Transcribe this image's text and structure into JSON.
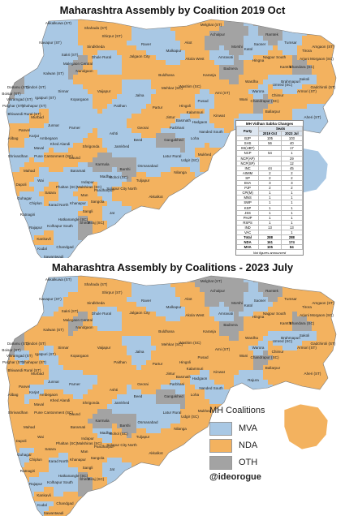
{
  "colors": {
    "MVA": "#a9c8e4",
    "NDA": "#f3b25f",
    "OTH": "#a3a3a3"
  },
  "maps": [
    {
      "title": "Maharashtra Assembly by Coalition 2019 Oct",
      "seats": {
        "Akkalkuwa (ST)": "MVA",
        "Shahada (ST)": "NDA",
        "Shirpur (ST)": "NDA",
        "Navapur (ST)": "MVA",
        "Sindkheda": "NDA",
        "Sakri (ST)": "MVA",
        "Dhule Rural": "MVA",
        "Jalgaon City": "NDA",
        "Raver": "MVA",
        "Malkapur": "MVA",
        "Akot": "NDA",
        "Achalpur": "OTH",
        "Melghat (ST)": "NDA",
        "Ramtek": "OTH",
        "Tumsar": "MVA",
        "Tirora": "NDA",
        "Amgaon (ST)": "NDA",
        "Arjuni Morgaon (SC)": "NDA",
        "Kalwan (ST)": "MVA",
        "Nandgaon": "NDA",
        "Malegaon Central": "OTH",
        "Dindori (ST)": "MVA",
        "Vaijapur": "NDA",
        "Jalna": "MVA",
        "Buldhana": "NDA",
        "Akola West": "NDA",
        "Amravati": "MVA",
        "Hingna": "NDA",
        "Nagpur South": "NDA",
        "Kamthi": "NDA",
        "Bhandara (SC)": "OTH",
        "Sakoli": "MVA",
        "Armori (ST)": "NDA",
        "Dahanu (ST)": "OTH",
        "Vikramgad (ST)": "MVA",
        "Palghar (ST)": "MVA",
        "Boisar (ST)": "OTH",
        "Bhiwandi Rural (ST)": "MVA",
        "Murbad": "NDA",
        "Shahapur (ST)": "MVA",
        "Igatpuri (ST)": "MVA",
        "Sinnar": "MVA",
        "Kopargaon": "MVA",
        "Paithan": "MVA",
        "Partur": "NDA",
        "Jintur": "NDA",
        "Washim (SC)": "NDA",
        "Pusad": "MVA",
        "Wardha": "NDA",
        "Chimur": "NDA",
        "Gadchiroli (ST)": "NDA",
        "Aheri (ST)": "MVA",
        "Brahmapuri": "MVA",
        "Ballarpur": "NDA",
        "Rajura": "MVA",
        "Wani": "NDA",
        "Arni (ST)": "NDA",
        "Kinwat": "NDA",
        "Hadgaon": "MVA",
        "Nanded South": "MVA",
        "Loha": "MVA",
        "Mukhed": "NDA",
        "Udgir (SC)": "MVA",
        "Latur Rural": "MVA",
        "Nilanga": "NDA",
        "Osmanabad": "MVA",
        "Tuljapur": "NDA",
        "Solapur City North": "NDA",
        "Akkalkot": "NDA",
        "Pandharpur": "MVA",
        "Madha": "MVA",
        "Karmala": "OTH",
        "Barshi": "OTH",
        "Jamkhed": "MVA",
        "Beed": "MVA",
        "Georai": "NDA",
        "Ashti": "MVA",
        "Shrigonda": "NDA",
        "Parner": "MVA",
        "Junnar": "MVA",
        "Ambegaon": "MVA",
        "Khed Alandi": "MVA",
        "Maval": "MVA",
        "Pune Cantonment (SC)": "NDA",
        "Baramati": "MVA",
        "Indapur": "MVA",
        "Daund": "NDA",
        "Phaltan (SC)": "MVA",
        "Satara": "NDA",
        "Karad North": "MVA",
        "Wai": "MVA",
        "Mahad": "NDA",
        "Shrivardhan": "MVA",
        "Alibag": "NDA",
        "Panvel": "NDA",
        "Karjat": "MVA",
        "Dapoli": "NDA",
        "Guhagar": "MVA",
        "Chiplun": "MVA",
        "Ratnagiri": "MVA",
        "Rajapur": "MVA",
        "Kankavli": "NDA",
        "Kudal": "MVA",
        "Sawantwadi": "MVA",
        "Chandgad": "MVA",
        "Kolhapur South": "MVA",
        "Hatkanangle (SC)": "MVA",
        "Shirol": "OTH",
        "Sangli": "NDA",
        "Jat": "MVA",
        "Miraj (SC)": "NDA",
        "Khanapur": "MVA",
        "Man": "NDA",
        "Sangola": "NDA",
        "Mohol (SC)": "MVA",
        "Malshiras (SC)": "NDA",
        "Gangakhed": "OTH",
        "Parbhani": "MVA",
        "Kalamnuri": "NDA",
        "Hingoli": "NDA",
        "Basmath": "MVA",
        "Mehkar (SC)": "NDA",
        "Karanja": "NDA",
        "Badnera": "OTH",
        "Morshi": "OTH",
        "Katol": "MVA",
        "Saoner": "MVA",
        "Umred (SC)": "MVA",
        "Chandrapur (SC)": "OTH",
        "Warora": "MVA"
      },
      "table": {
        "title": "MH Vidhan Sabha Changes",
        "headers": [
          "Party",
          "2019 Oct",
          "2023 Jul"
        ],
        "group_label": "Seats",
        "rows": [
          [
            "BJP",
            "105",
            "103"
          ],
          [
            "SHS",
            "56",
            "40"
          ],
          [
            "SS(UBT)",
            "",
            "17"
          ],
          [
            "NCP",
            "54",
            "1"
          ],
          [
            "NCP(AP)",
            "",
            "29"
          ],
          [
            "NCP(SP)",
            "",
            "12"
          ],
          [
            "INC",
            "44",
            "45"
          ],
          [
            "AIMIM",
            "2",
            "2"
          ],
          [
            "SP",
            "2",
            "2"
          ],
          [
            "BVA",
            "3",
            "3"
          ],
          [
            "PJP",
            "2",
            "2"
          ],
          [
            "CPI(M)",
            "1",
            "1"
          ],
          [
            "MNS",
            "1",
            "1"
          ],
          [
            "SWP",
            "1",
            "1"
          ],
          [
            "KSP",
            "1",
            "1"
          ],
          [
            "JSS",
            "1",
            "1"
          ],
          [
            "PHJP",
            "1",
            "1"
          ],
          [
            "RSPS",
            "1",
            "1"
          ],
          [
            "IND",
            "13",
            "13"
          ],
          [
            "VAC",
            "",
            "1"
          ]
        ],
        "totals": [
          [
            "Total",
            "288",
            "288"
          ],
          [
            "NDA",
            "161",
            "174"
          ],
          [
            "MVA",
            "105",
            "84"
          ]
        ],
        "note": "Not figures announced"
      }
    },
    {
      "title": "Maharashtra Assembly by Coalitions - 2023 July",
      "seats": {
        "Akkalkuwa (ST)": "MVA",
        "Shahada (ST)": "NDA",
        "Shirpur (ST)": "NDA",
        "Navapur (ST)": "MVA",
        "Sindkheda": "NDA",
        "Sakri (ST)": "NDA",
        "Dhule Rural": "MVA",
        "Jalgaon City": "NDA",
        "Raver": "MVA",
        "Malkapur": "MVA",
        "Akot": "NDA",
        "Achalpur": "OTH",
        "Melghat (ST)": "OTH",
        "Ramtek": "OTH",
        "Tumsar": "NDA",
        "Tirora": "NDA",
        "Amgaon (ST)": "NDA",
        "Arjuni Morgaon (SC)": "NDA",
        "Kalwan (ST)": "NDA",
        "Nandgaon": "NDA",
        "Malegaon Central": "OTH",
        "Dindori (ST)": "NDA",
        "Vaijapur": "NDA",
        "Jalna": "MVA",
        "Buldhana": "NDA",
        "Akola West": "NDA",
        "Amravati": "MVA",
        "Hingna": "NDA",
        "Nagpur South": "NDA",
        "Kamthi": "NDA",
        "Bhandara (SC)": "OTH",
        "Sakoli": "MVA",
        "Armori (ST)": "NDA",
        "Dahanu (ST)": "OTH",
        "Vikramgad (ST)": "MVA",
        "Palghar (ST)": "NDA",
        "Boisar (ST)": "OTH",
        "Bhiwandi Rural (ST)": "NDA",
        "Murbad": "NDA",
        "Shahapur (ST)": "NDA",
        "Igatpuri (ST)": "MVA",
        "Sinnar": "NDA",
        "Kopargaon": "NDA",
        "Paithan": "NDA",
        "Partur": "NDA",
        "Jintur": "NDA",
        "Washim (SC)": "NDA",
        "Pusad": "NDA",
        "Wardha": "NDA",
        "Chimur": "NDA",
        "Gadchiroli (ST)": "NDA",
        "Aheri (ST)": "NDA",
        "Brahmapuri": "MVA",
        "Ballarpur": "NDA",
        "Rajura": "MVA",
        "Wani": "NDA",
        "Arni (ST)": "NDA",
        "Kinwat": "NDA",
        "Hadgaon": "MVA",
        "Nanded South": "MVA",
        "Loha": "NDA",
        "Mukhed": "NDA",
        "Udgir (SC)": "NDA",
        "Latur Rural": "MVA",
        "Nilanga": "NDA",
        "Osmanabad": "MVA",
        "Tuljapur": "NDA",
        "Solapur City North": "NDA",
        "Akkalkot": "NDA",
        "Pandharpur": "NDA",
        "Madha": "MVA",
        "Karmala": "OTH",
        "Barshi": "OTH",
        "Jamkhed": "MVA",
        "Beed": "MVA",
        "Georai": "NDA",
        "Ashti": "NDA",
        "Shrigonda": "NDA",
        "Parner": "MVA",
        "Junnar": "MVA",
        "Ambegaon": "NDA",
        "Khed Alandi": "NDA",
        "Maval": "NDA",
        "Pune Cantonment (SC)": "NDA",
        "Baramati": "NDA",
        "Indapur": "NDA",
        "Daund": "NDA",
        "Phaltan (SC)": "NDA",
        "Satara": "NDA",
        "Karad North": "MVA",
        "Wai": "NDA",
        "Mahad": "NDA",
        "Shrivardhan": "NDA",
        "Alibag": "NDA",
        "Panvel": "NDA",
        "Karjat": "MVA",
        "Dapoli": "NDA",
        "Guhagar": "MVA",
        "Chiplun": "NDA",
        "Ratnagiri": "NDA",
        "Rajapur": "MVA",
        "Kankavli": "NDA",
        "Kudal": "MVA",
        "Sawantwadi": "NDA",
        "Chandgad": "NDA",
        "Kolhapur South": "MVA",
        "Hatkanangle (SC)": "MVA",
        "Shirol": "OTH",
        "Sangli": "NDA",
        "Jat": "MVA",
        "Miraj (SC)": "NDA",
        "Khanapur": "NDA",
        "Man": "NDA",
        "Sangola": "NDA",
        "Mohol (SC)": "NDA",
        "Malshiras (SC)": "NDA",
        "Gangakhed": "OTH",
        "Parbhani": "MVA",
        "Kalamnuri": "NDA",
        "Hingoli": "NDA",
        "Basmath": "NDA",
        "Mehkar (SC)": "NDA",
        "Karanja": "NDA",
        "Badnera": "OTH",
        "Morshi": "OTH",
        "Katol": "MVA",
        "Saoner": "MVA",
        "Umred (SC)": "MVA",
        "Chandrapur (SC)": "OTH",
        "Warora": "MVA"
      }
    }
  ],
  "legend": {
    "title": "MH Coalitions",
    "items": [
      {
        "label": "MVA",
        "color": "#a9c8e4"
      },
      {
        "label": "NDA",
        "color": "#f3b25f"
      },
      {
        "label": "OTH",
        "color": "#a3a3a3"
      }
    ],
    "credit": "@ideorogue"
  }
}
